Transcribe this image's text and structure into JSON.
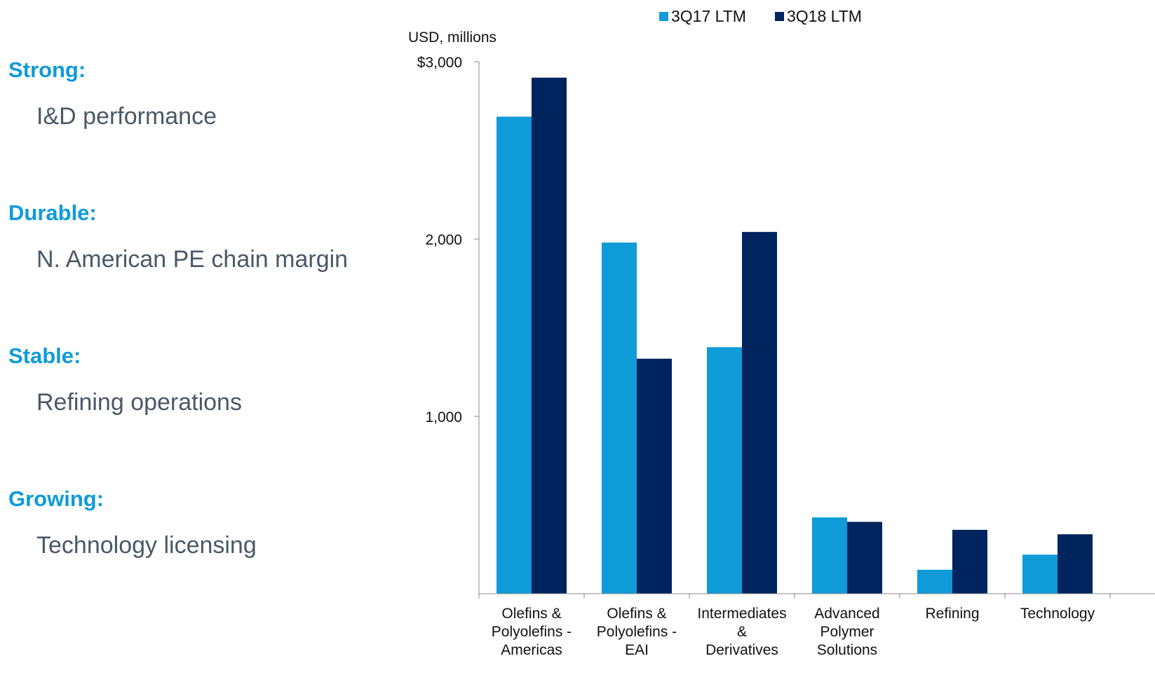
{
  "points": [
    {
      "heading": "Strong:",
      "text": "I&D performance"
    },
    {
      "heading": "Durable:",
      "text": "N. American PE chain margin"
    },
    {
      "heading": "Stable:",
      "text": "Refining operations"
    },
    {
      "heading": "Growing:",
      "text": "Technology licensing"
    }
  ],
  "colors": {
    "series_a": "#0E9BD8",
    "series_b": "#00245D",
    "heading": "#0E9BD8",
    "body_text": "#4a5866"
  },
  "chart_data": {
    "type": "bar",
    "unit_label": "USD, millions",
    "categories": [
      [
        "Olefins &",
        "Polyolefins -",
        "Americas"
      ],
      [
        "Olefins &",
        "Polyolefins -",
        "EAI"
      ],
      [
        "Intermediates",
        "&",
        "Derivatives"
      ],
      [
        "Advanced",
        "Polymer",
        "Solutions"
      ],
      [
        "Refining"
      ],
      [
        "Technology"
      ]
    ],
    "series": [
      {
        "name": "3Q17 LTM",
        "values": [
          2690,
          1980,
          1390,
          430,
          135,
          220
        ]
      },
      {
        "name": "3Q18 LTM",
        "values": [
          2910,
          1325,
          2040,
          405,
          360,
          335
        ]
      }
    ],
    "ylim": [
      0,
      3000
    ],
    "yticks": [
      {
        "value": 3000,
        "label": "$3,000"
      },
      {
        "value": 2000,
        "label": "2,000"
      },
      {
        "value": 1000,
        "label": "1,000"
      }
    ],
    "legend_position": "top",
    "grid": false
  }
}
